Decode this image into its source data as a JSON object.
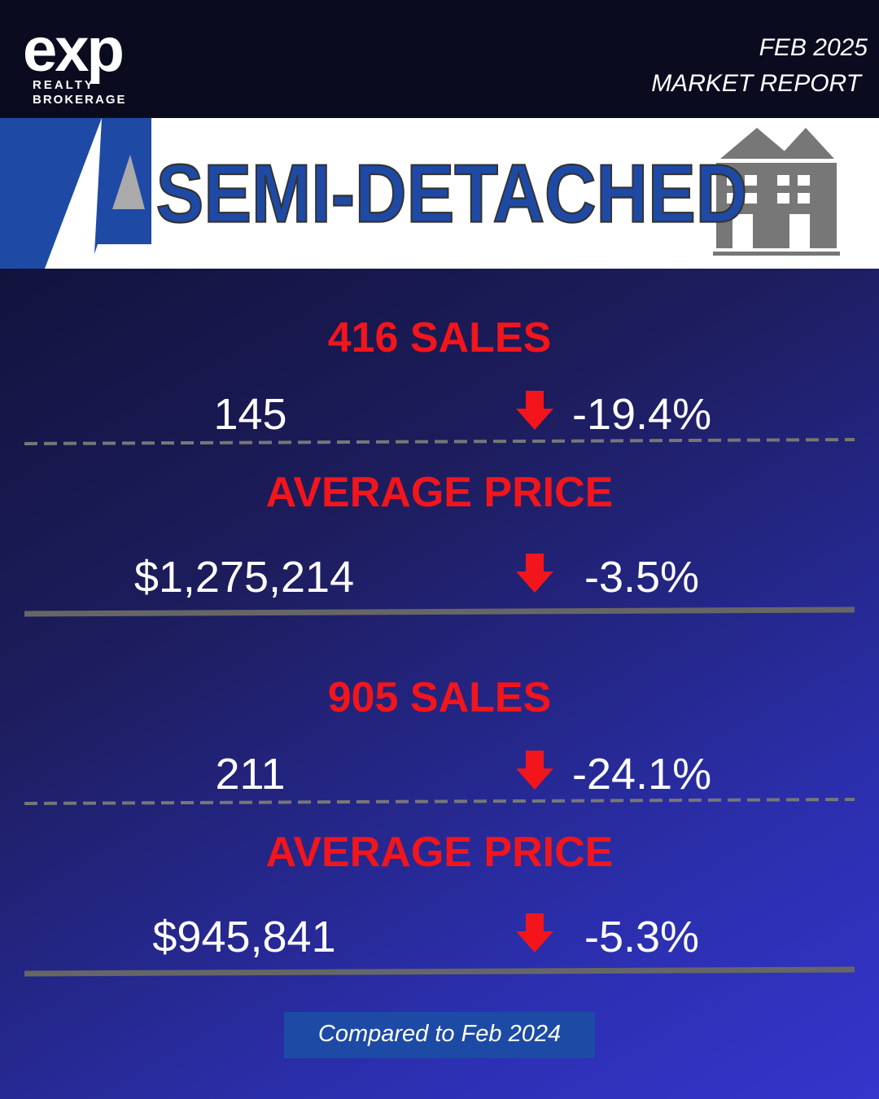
{
  "logo": {
    "mark": "exp",
    "line1": "REALTY",
    "line2": "BROKERAGE"
  },
  "header": {
    "date": "FEB 2025",
    "subtitle": "MARKET REPORT"
  },
  "banner": {
    "title": "SEMI-DETACHED"
  },
  "sections": [
    {
      "title": "416 SALES",
      "rows": [
        {
          "value": "145",
          "change": "-19.4%"
        }
      ],
      "price_title": "AVERAGE PRICE",
      "price": "$1,275,214",
      "price_change": "-3.5%"
    },
    {
      "title": "905 SALES",
      "rows": [
        {
          "value": "211",
          "change": "-24.1%"
        }
      ],
      "price_title": "AVERAGE PRICE",
      "price": "$945,841",
      "price_change": "-5.3%"
    }
  ],
  "footer": {
    "note": "Compared to Feb 2024"
  }
}
